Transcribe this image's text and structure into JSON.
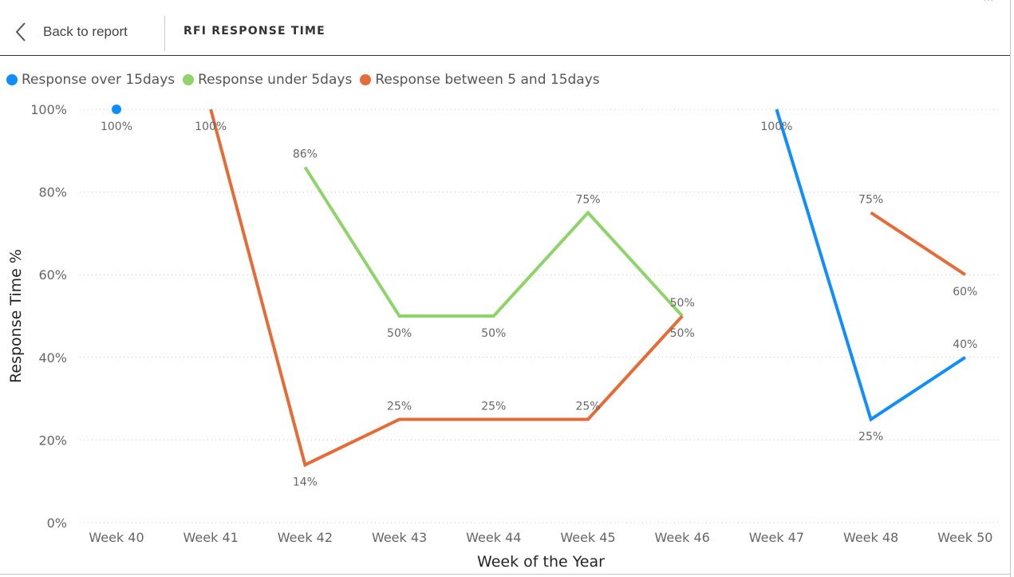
{
  "header": {
    "back_label": "Back to report",
    "title": "RFI RESPONSE TIME"
  },
  "chart_data": {
    "type": "line",
    "categories": [
      "Week 40",
      "Week 41",
      "Week 42",
      "Week 43",
      "Week 44",
      "Week 45",
      "Week 46",
      "Week 47",
      "Week 48",
      "Week 50"
    ],
    "xlabel": "Week of the Year",
    "ylabel": "Response Time %",
    "ylim": [
      0,
      100
    ],
    "yticks": [
      "0%",
      "20%",
      "40%",
      "60%",
      "80%",
      "100%"
    ],
    "grid": true,
    "legend_position": "top-left",
    "series": [
      {
        "name": "Response over 15days",
        "color": "#118DFF",
        "values": [
          100,
          null,
          null,
          null,
          null,
          null,
          null,
          100,
          25,
          40
        ],
        "labels": [
          "100%",
          null,
          null,
          null,
          null,
          null,
          null,
          "100%",
          "25%",
          "40%"
        ]
      },
      {
        "name": "Response under 5days",
        "color": "#8FD46A",
        "values": [
          null,
          null,
          86,
          50,
          50,
          75,
          50,
          null,
          null,
          null
        ],
        "labels": [
          null,
          null,
          "86%",
          "50%",
          "50%",
          "75%",
          "50%",
          null,
          null,
          null
        ]
      },
      {
        "name": "Response between 5 and 15days",
        "color": "#E66C37",
        "values": [
          null,
          100,
          14,
          25,
          25,
          25,
          50,
          null,
          75,
          60
        ],
        "labels": [
          null,
          "100%",
          "14%",
          "25%",
          "25%",
          "25%",
          "50%",
          null,
          "75%",
          "60%"
        ]
      }
    ]
  }
}
